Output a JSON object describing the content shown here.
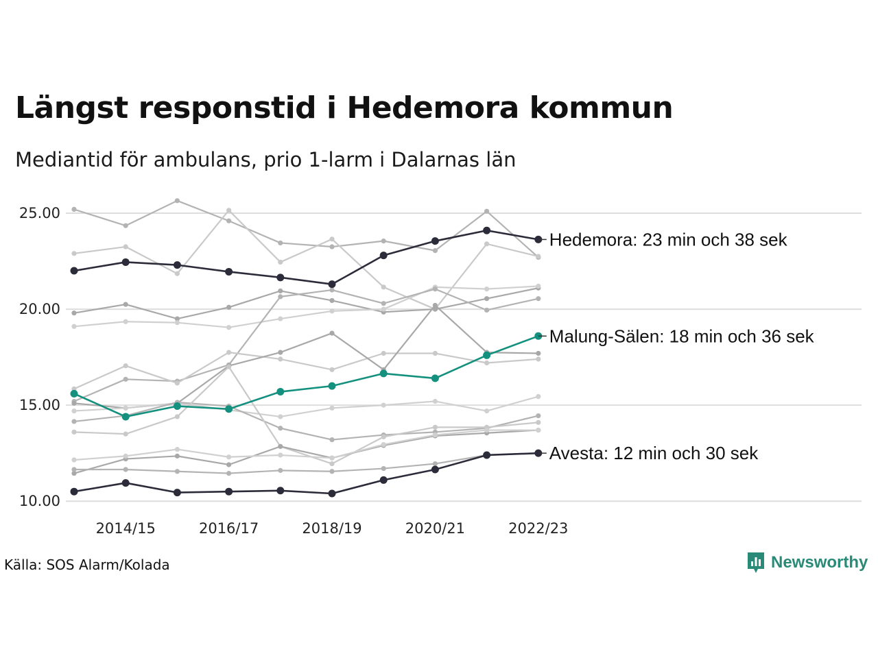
{
  "header": {
    "title": "Längst responstid i Hedemora kommun",
    "subtitle": "Mediantid för ambulans, prio 1-larm i Dalarnas län"
  },
  "footer": {
    "source": "Källa: SOS Alarm/Kolada",
    "brand": "Newsworthy",
    "brand_icon": "bar-chart-speech-bubble-icon"
  },
  "colors": {
    "background_series": [
      "#b3b3b3",
      "#c9c9c9",
      "#a8a8a8",
      "#d0d0d0"
    ],
    "hedemora": "#2b2b3a",
    "avesta": "#2b2b3a",
    "malung": "#13907e",
    "brand": "#2a8a78",
    "grid": "#dddddd"
  },
  "chart_data": {
    "type": "line",
    "x": [
      "2013/14",
      "2014/15",
      "2015/16",
      "2016/17",
      "2017/18",
      "2018/19",
      "2019/20",
      "2020/21",
      "2021/22",
      "2022/23"
    ],
    "x_tick_labels": [
      "2014/15",
      "2016/17",
      "2018/19",
      "2020/21",
      "2022/23"
    ],
    "y_tick_labels": [
      "10.00",
      "15.00",
      "20.00",
      "25.00"
    ],
    "ylim": [
      9.9,
      25.75
    ],
    "grid": "horizontal",
    "highlighted": [
      {
        "name": "Hedemora",
        "label": "Hedemora: 23 min och 38 sek",
        "color_key": "hedemora",
        "values": [
          22.0,
          22.45,
          22.3,
          21.95,
          21.65,
          21.3,
          22.8,
          23.55,
          24.1,
          23.63
        ]
      },
      {
        "name": "Malung-Sälen",
        "label": "Malung-Sälen: 18 min och 36 sek",
        "color_key": "malung",
        "values": [
          15.6,
          14.4,
          14.95,
          14.8,
          15.7,
          16.0,
          16.65,
          16.4,
          17.6,
          18.6
        ]
      },
      {
        "name": "Avesta",
        "label": "Avesta: 12 min och 30 sek",
        "color_key": "avesta",
        "values": [
          10.5,
          10.95,
          10.45,
          10.5,
          10.55,
          10.4,
          11.1,
          11.65,
          12.4,
          12.5
        ]
      }
    ],
    "background_series": [
      {
        "values": [
          25.2,
          24.35,
          25.65,
          24.6,
          23.45,
          23.25,
          23.55,
          23.05,
          25.1,
          22.7
        ]
      },
      {
        "values": [
          22.9,
          23.25,
          21.85,
          25.15,
          22.45,
          23.65,
          21.15,
          20.0,
          23.4,
          22.75
        ]
      },
      {
        "values": [
          19.8,
          20.25,
          19.5,
          20.1,
          20.95,
          20.45,
          19.85,
          20.0,
          20.55,
          21.1
        ]
      },
      {
        "values": [
          19.1,
          19.35,
          19.3,
          19.05,
          19.5,
          19.9,
          20.0,
          21.15,
          21.05,
          21.2
        ]
      },
      {
        "values": [
          15.2,
          16.35,
          16.25,
          17.1,
          20.65,
          21.0,
          20.3,
          21.05,
          19.95,
          20.55
        ]
      },
      {
        "values": [
          15.85,
          17.05,
          16.15,
          17.75,
          17.4,
          16.85,
          17.7,
          17.7,
          17.2,
          17.4
        ]
      },
      {
        "values": [
          15.1,
          14.85,
          15.1,
          17.05,
          17.75,
          18.75,
          16.85,
          20.2,
          17.75,
          17.7
        ]
      },
      {
        "values": [
          14.7,
          14.85,
          15.1,
          14.75,
          14.4,
          14.85,
          15.0,
          15.2,
          14.7,
          15.45
        ]
      },
      {
        "values": [
          14.15,
          14.45,
          15.15,
          14.95,
          13.8,
          13.2,
          13.45,
          13.6,
          13.8,
          14.45
        ]
      },
      {
        "values": [
          13.6,
          13.5,
          14.4,
          17.0,
          12.85,
          11.95,
          13.35,
          13.85,
          13.85,
          14.1
        ]
      },
      {
        "values": [
          11.45,
          12.2,
          12.35,
          11.9,
          12.85,
          12.25,
          12.9,
          13.4,
          13.55,
          13.7
        ]
      },
      {
        "values": [
          12.15,
          12.35,
          12.7,
          12.3,
          12.4,
          12.25,
          12.95,
          13.45,
          13.7,
          13.7
        ]
      },
      {
        "values": [
          11.65,
          11.65,
          11.55,
          11.45,
          11.6,
          11.55,
          11.7,
          11.95,
          12.4,
          12.5
        ]
      }
    ]
  }
}
